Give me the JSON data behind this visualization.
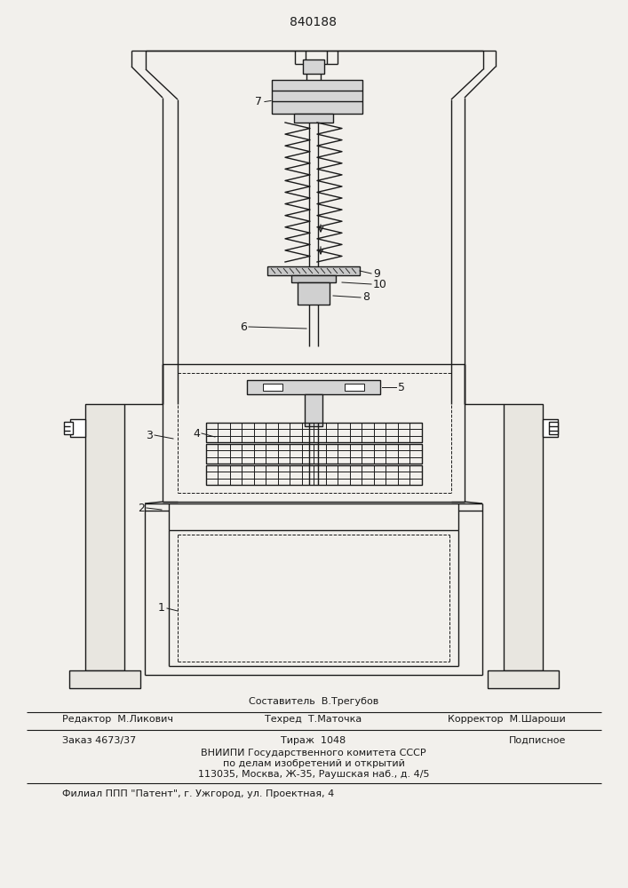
{
  "title": "840188",
  "bg_color": "#f2f0ec",
  "line_color": "#1a1a1a",
  "lw": 1.0,
  "footer": {
    "sestavitel": "Составитель  В.Трегубов",
    "redaktor": "Редактор  М.Ликович",
    "tehred": "Техред  Т.Маточка",
    "korrektor": "Корректор  М.Шароши",
    "zakaz": "Заказ 4673/37",
    "tirazh": "Тираж  1048",
    "podpisnoe": "Подписное",
    "vniiipi1": "ВНИИПИ Государственного комитета СССР",
    "vniiipi2": "по делам изобретений и открытий",
    "vniiipi3": "113035, Москва, Ж-35, Раушская наб., д. 4/5",
    "filial": "Филиал ППП \"Патент\", г. Ужгород, ул. Проектная, 4"
  }
}
